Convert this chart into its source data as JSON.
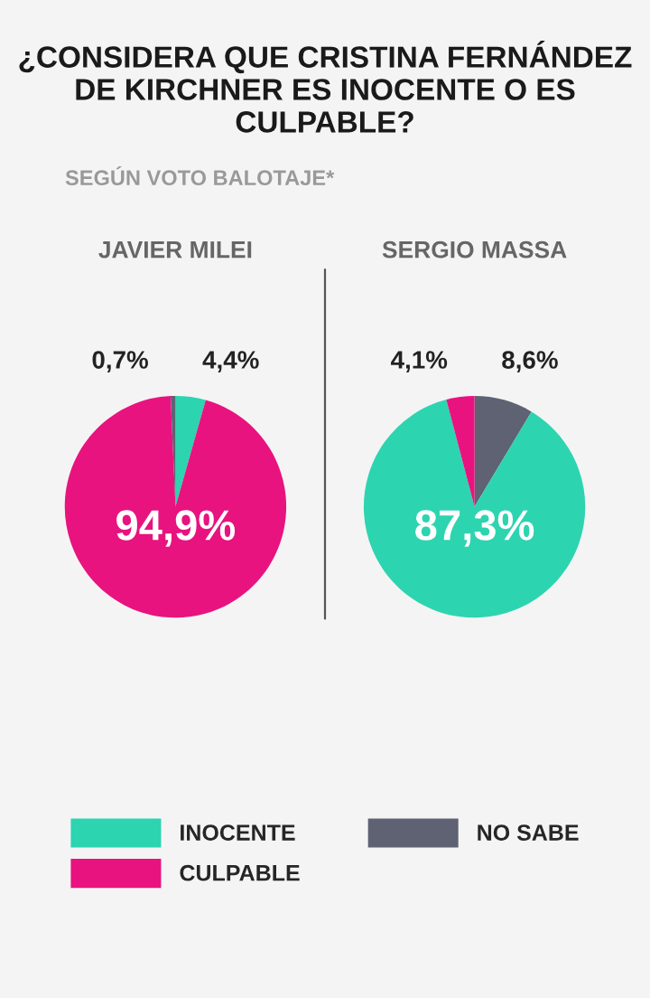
{
  "chart_data": [
    {
      "type": "pie",
      "title": "JAVIER MILEI",
      "annotations": [
        "¿CONSIDERA QUE CRISTINA FERNÁNDEZ DE KIRCHNER ES INOCENTE O ES CULPABLE?",
        "SEGÚN VOTO BALOTAJE*"
      ],
      "categories": [
        "INOCENTE",
        "CULPABLE",
        "NO SABE"
      ],
      "values": [
        4.4,
        94.9,
        0.7
      ],
      "value_labels": [
        "4,4%",
        "94,9%",
        "0,7%"
      ],
      "colors": [
        "#2dd4b0",
        "#e8137f",
        "#5e6272"
      ],
      "legend": "bottom"
    },
    {
      "type": "pie",
      "title": "SERGIO MASSA",
      "categories": [
        null,
        null,
        null
      ],
      "values": [
        8.6,
        87.3,
        4.1
      ],
      "value_labels": [
        "8,6%",
        "87,3%",
        "4,1%"
      ],
      "colors": [
        "#5e6272",
        "#2dd4b0",
        "#e8137f"
      ]
    }
  ]
}
